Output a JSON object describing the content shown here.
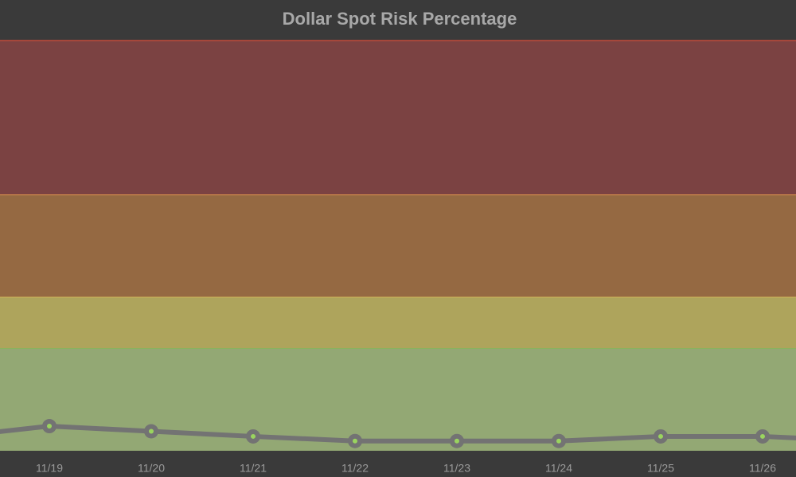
{
  "chart_data": {
    "type": "line",
    "title": "Dollar Spot Risk Percentage",
    "categories": [
      null,
      "11/19",
      "11/20",
      "11/21",
      "11/22",
      "11/23",
      "11/24",
      "11/25",
      "11/26",
      null
    ],
    "series": [
      {
        "name": null,
        "color": "#737373",
        "values": [
          2.6,
          4.8,
          3.8,
          2.8,
          1.9,
          1.9,
          1.9,
          2.8,
          2.8,
          1.9
        ]
      }
    ],
    "ylim": [
      0,
      80
    ],
    "bands": [
      {
        "from": 0,
        "to": 20,
        "color": "#93a874",
        "edge": "#7fb85a"
      },
      {
        "from": 20,
        "to": 30,
        "color": "#aea45c",
        "edge": "#e8d060"
      },
      {
        "from": 30,
        "to": 50,
        "color": "#956942",
        "edge": "#f0a050"
      },
      {
        "from": 50,
        "to": 80,
        "color": "#7b4242",
        "edge": "#c04a3a"
      }
    ],
    "marker_color": "#9ad45f"
  }
}
